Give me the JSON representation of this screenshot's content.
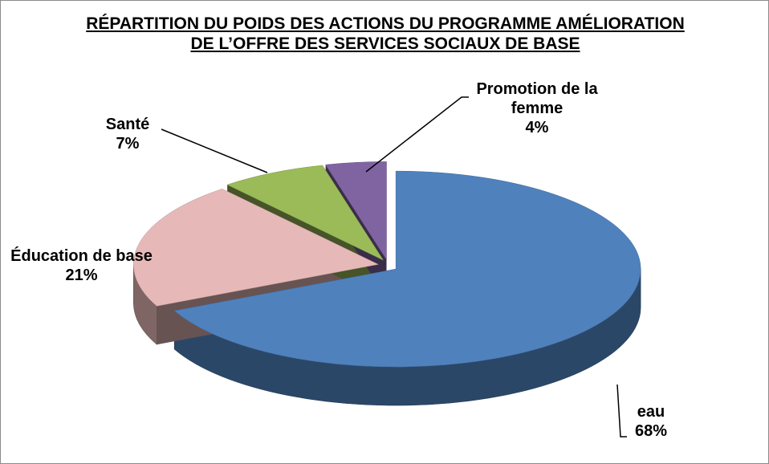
{
  "chart_data": {
    "type": "pie",
    "title": "RÉPARTITION DU POIDS DES ACTIONS DU PROGRAMME AMÉLIORATION DE L’OFFRE DES SERVICES SOCIAUX DE BASE",
    "categories": [
      "eau",
      "Éducation de base",
      "Santé",
      "Promotion de la femme"
    ],
    "values": [
      68,
      21,
      7,
      4
    ],
    "value_labels": [
      "68%",
      "21%",
      "7%",
      "4%"
    ],
    "colors": [
      "#4f81bd",
      "#e6b9b8",
      "#9bbb59",
      "#8064a2"
    ]
  }
}
